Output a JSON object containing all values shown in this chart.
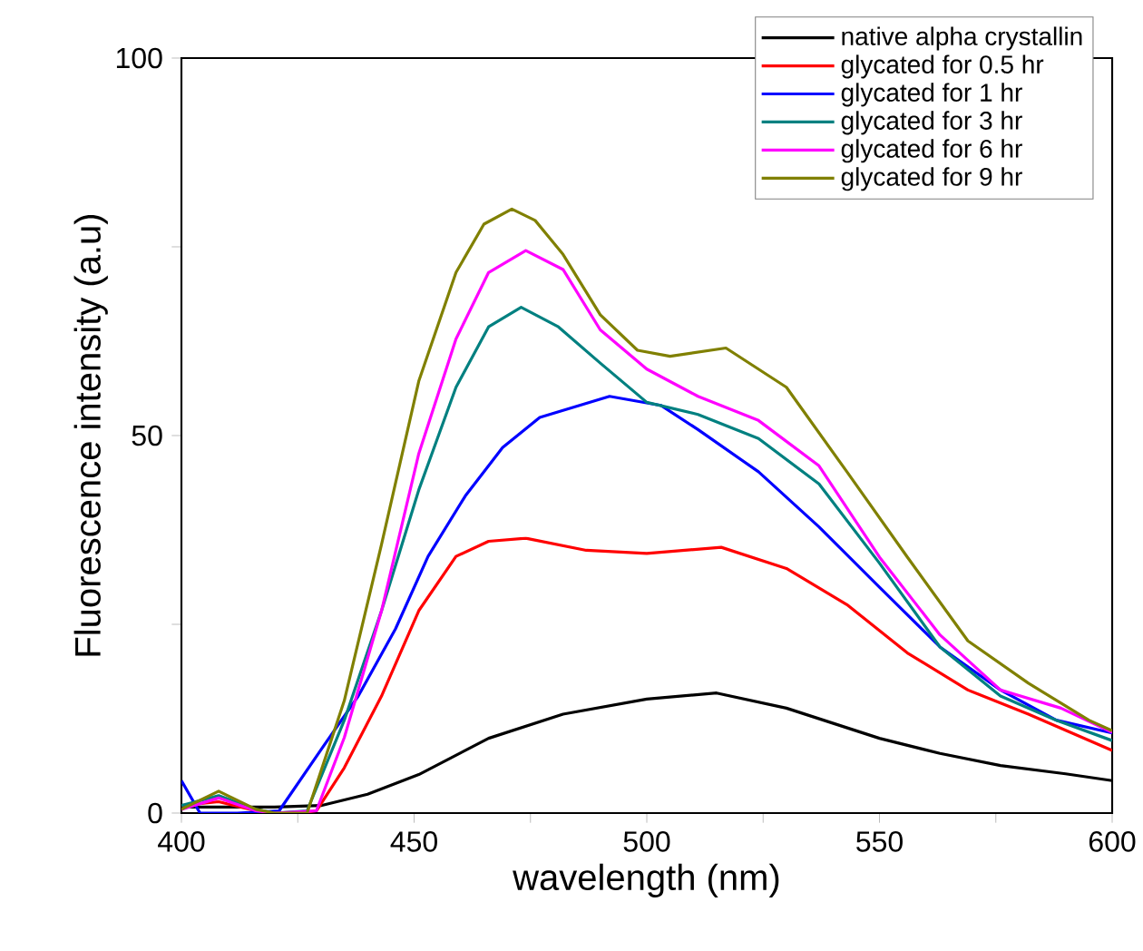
{
  "chart_data": {
    "type": "line",
    "xlabel": "wavelength (nm)",
    "ylabel": "Fluorescence intensity (a.u)",
    "xlim": [
      400,
      600
    ],
    "ylim": [
      0,
      100
    ],
    "xticks": [
      400,
      {
        "value": 425,
        "label": null
      },
      450,
      {
        "value": 475,
        "label": null
      },
      500,
      {
        "value": 525,
        "label": null
      },
      550,
      {
        "value": 575,
        "label": null
      },
      600
    ],
    "yticks": [
      0,
      {
        "value": 25,
        "label": null
      },
      50,
      {
        "value": 75,
        "label": null
      },
      100
    ],
    "legend": "top right",
    "grid": false,
    "marker": "none",
    "line_style": "solid",
    "series": [
      {
        "name": "native alpha crystallin",
        "color": "#000000",
        "x": [
          400,
          410,
          420,
          430,
          440,
          451,
          466,
          482,
          500,
          515,
          530,
          550,
          563,
          576,
          590,
          600
        ],
        "values": [
          0.8,
          0.8,
          0.8,
          1.0,
          2.5,
          5.1,
          9.9,
          13.1,
          15.1,
          15.9,
          13.9,
          9.9,
          7.9,
          6.3,
          5.2,
          4.3
        ]
      },
      {
        "name": "glycated for 0.5 hr",
        "color": "#ff0000",
        "x": [
          400,
          408,
          416,
          420,
          425,
          429,
          435,
          443,
          451,
          459,
          466,
          474,
          487,
          500,
          516,
          530,
          543,
          556,
          569,
          582,
          600
        ],
        "values": [
          1.0,
          1.5,
          0.3,
          0,
          0,
          0.3,
          6,
          15.5,
          26.8,
          34,
          36,
          36.4,
          34.8,
          34.4,
          35.2,
          32.4,
          27.6,
          21.2,
          16.3,
          13.1,
          8.3
        ]
      },
      {
        "name": "glycated for 1 hr",
        "color": "#0000ff",
        "x": [
          400,
          404,
          412,
          421,
          430,
          438,
          446,
          453,
          461,
          469,
          477,
          492,
          503,
          511,
          524,
          537,
          550,
          563,
          576,
          588,
          600
        ],
        "values": [
          4.3,
          0,
          0,
          0.3,
          8.4,
          15.5,
          24.4,
          34,
          42,
          48.4,
          52.4,
          55.2,
          54,
          50.8,
          45.2,
          37.9,
          29.9,
          22,
          16.3,
          12.3,
          10.6
        ]
      },
      {
        "name": "glycated for 3 hr",
        "color": "#008080",
        "x": [
          400,
          408,
          416,
          420,
          427,
          435,
          443,
          451,
          459,
          466,
          473,
          481,
          490,
          500,
          511,
          524,
          537,
          550,
          563,
          576,
          588,
          600
        ],
        "values": [
          1.0,
          2.3,
          0.5,
          0,
          0.3,
          12.3,
          26.8,
          42.8,
          56.4,
          64.4,
          67,
          64.4,
          59.6,
          54.4,
          52.8,
          49.6,
          43.6,
          33.1,
          22,
          15.5,
          12.3,
          9.6
        ]
      },
      {
        "name": "glycated for 6 hr",
        "color": "#ff00ff",
        "x": [
          400,
          408,
          416,
          420,
          429,
          435,
          443,
          451,
          459,
          466,
          474,
          482,
          490,
          500,
          511,
          524,
          537,
          550,
          563,
          576,
          589,
          600
        ],
        "values": [
          0.5,
          2.0,
          0.3,
          0,
          0.3,
          10,
          26.8,
          47.6,
          62.8,
          71.6,
          74.5,
          72,
          64,
          58.8,
          55.2,
          52,
          46,
          33.9,
          23.6,
          16.3,
          13.9,
          10.7
        ]
      },
      {
        "name": "glycated for 9 hr",
        "color": "#808000",
        "x": [
          400,
          408,
          416,
          420,
          427,
          435,
          443,
          451,
          459,
          465,
          471,
          476,
          482,
          490,
          498,
          505,
          517,
          530,
          543,
          556,
          569,
          582,
          595,
          600
        ],
        "values": [
          0.5,
          2.9,
          0.5,
          0,
          0,
          14.9,
          35.6,
          57.2,
          71.6,
          78,
          80,
          78.5,
          74,
          66,
          61.3,
          60.5,
          61.6,
          56.4,
          45.2,
          33.9,
          22.8,
          17.2,
          12.3,
          10.9
        ]
      }
    ]
  }
}
